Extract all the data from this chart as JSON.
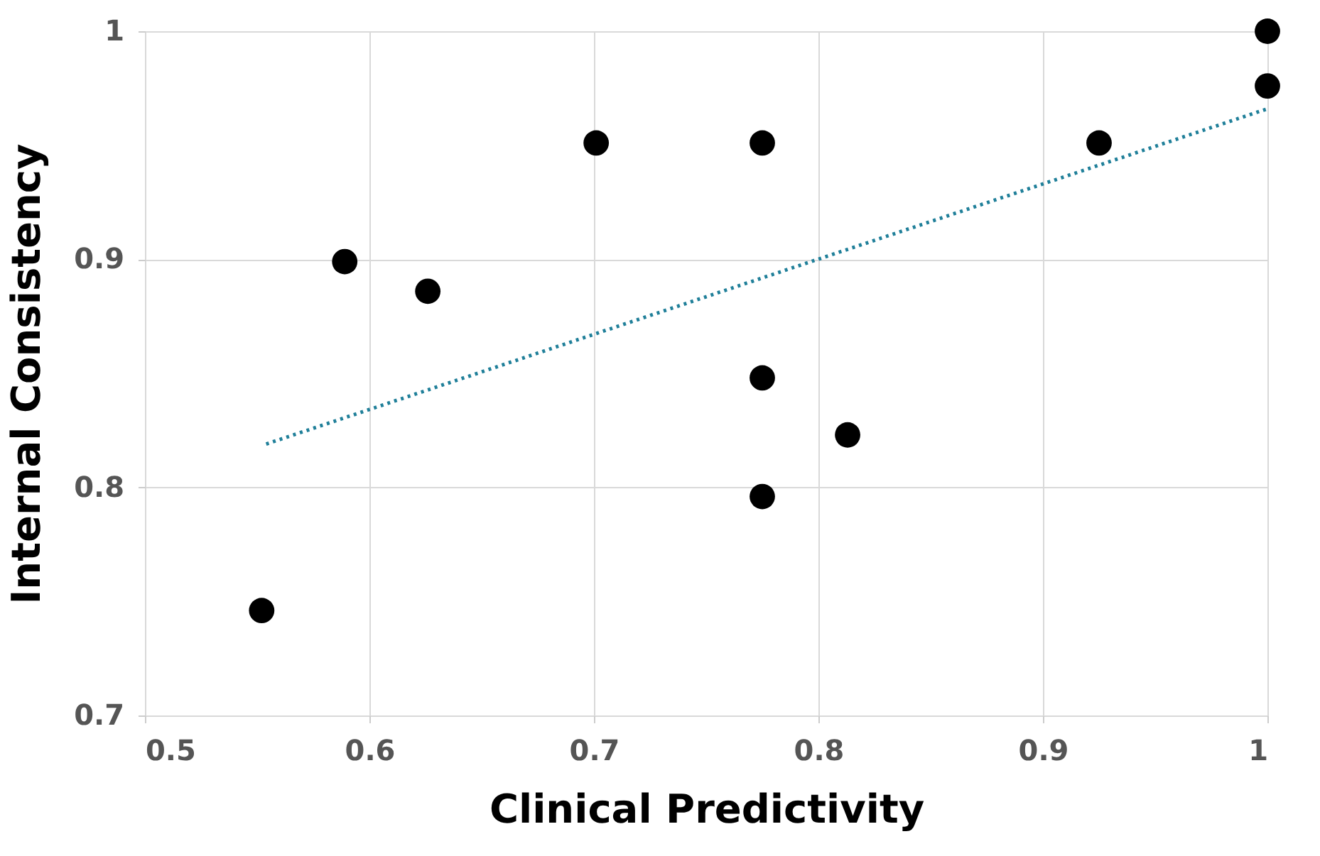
{
  "chart_data": {
    "type": "scatter",
    "xlabel": "Clinical Predictivity",
    "ylabel": "Internal Consistency",
    "xlim": [
      0.5,
      1
    ],
    "xticks": [
      0.5,
      0.6,
      0.7,
      0.8,
      0.9,
      1
    ],
    "ylim": [
      0.7,
      1
    ],
    "yticks": [
      0.7,
      0.8,
      0.9,
      1
    ],
    "grid": true,
    "series": [
      {
        "color": "#000000",
        "marker": "circle",
        "x": [
          0.552,
          0.589,
          0.626,
          0.701,
          0.775,
          0.775,
          0.775,
          0.813,
          0.925,
          1.0,
          1.0
        ],
        "values": [
          0.746,
          0.899,
          0.886,
          0.951,
          0.951,
          0.848,
          0.796,
          0.823,
          0.951,
          1.0,
          0.976
        ]
      },
      {
        "type": "line",
        "color": "#1f7f99",
        "line_style": "dotted",
        "x": [
          0.554,
          1.0
        ],
        "values": [
          0.819,
          0.966
        ]
      }
    ]
  }
}
